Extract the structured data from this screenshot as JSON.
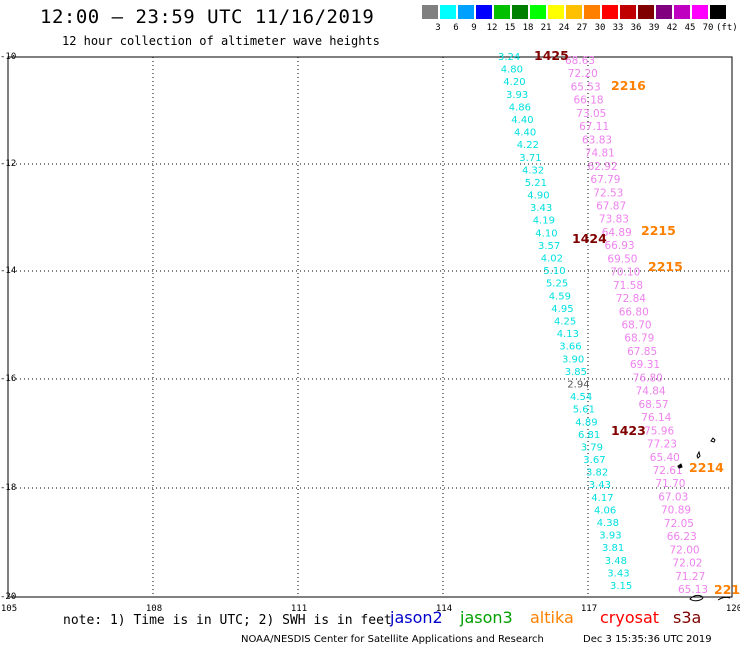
{
  "title": "12:00 — 23:59 UTC 11/16/2019",
  "subtitle": "12 hour collection of altimeter wave heights",
  "color_scale": {
    "labels": [
      "3",
      "6",
      "9",
      "12",
      "15",
      "18",
      "21",
      "24",
      "27",
      "30",
      "33",
      "36",
      "39",
      "42",
      "45",
      "70",
      "(ft)"
    ],
    "colors": [
      "#808080",
      "#00ffff",
      "#00a0ff",
      "#0000ff",
      "#00c000",
      "#008000",
      "#00ff00",
      "#ffff00",
      "#ffc000",
      "#ff8000",
      "#ff0000",
      "#c00000",
      "#800000",
      "#800080",
      "#c000c0",
      "#ff00ff",
      "#000000"
    ]
  },
  "axes": {
    "lat_labels": [
      "-10",
      "-12",
      "-14",
      "-16",
      "-18",
      "-20"
    ],
    "lon_labels": [
      "105",
      "108",
      "111",
      "114",
      "117",
      "120"
    ]
  },
  "tracks": {
    "cyan_color": "#00e0e0",
    "pink_color": "#ee82ee",
    "cyan_values": [
      "3.24",
      "4.80",
      "4.20",
      "3.93",
      "4.86",
      "4.40",
      "4.40",
      "4.22",
      "3.71",
      "4.32",
      "5.21",
      "4.90",
      "3.43",
      "4.19",
      "4.10",
      "3.57",
      "4.02",
      "5.10",
      "5.25",
      "4.59",
      "4.95",
      "4.25",
      "4.13",
      "3.66",
      "3.90",
      "3.85",
      "2.94",
      "4.54",
      "5.61",
      "4.89",
      "6.81",
      "3.79",
      "3.67",
      "3.82",
      "3.43",
      "4.17",
      "4.06",
      "4.38",
      "3.93",
      "3.81",
      "3.48",
      "3.43",
      "3.15"
    ],
    "pink_values": [
      "68.63",
      "72.20",
      "65.53",
      "66.18",
      "73.05",
      "67.11",
      "63.83",
      "74.81",
      "62.92",
      "67.79",
      "72.53",
      "67.87",
      "73.83",
      "64.89",
      "66.93",
      "69.50",
      "70.10",
      "71.58",
      "72.84",
      "66.80",
      "68.70",
      "68.79",
      "67.85",
      "69.31",
      "76.80",
      "74.84",
      "68.57",
      "76.14",
      "75.96",
      "77.23",
      "65.40",
      "72.61",
      "71.70",
      "67.03",
      "70.89",
      "72.05",
      "66.23",
      "72.00",
      "72.02",
      "71.27",
      "65.13"
    ]
  },
  "time_labels": [
    {
      "text": "1425",
      "color": "#800000"
    },
    {
      "text": "2216",
      "color": "#ff8000"
    },
    {
      "text": "1424",
      "color": "#800000"
    },
    {
      "text": "2215",
      "color": "#ff8000"
    },
    {
      "text": "2215",
      "color": "#ff8000"
    },
    {
      "text": "1423",
      "color": "#800000"
    },
    {
      "text": "2214",
      "color": "#ff8000"
    },
    {
      "text": "221",
      "color": "#ff8000"
    }
  ],
  "note": "note: 1) Time is in UTC; 2) SWH is in feet",
  "satellites": [
    {
      "name": "jason2",
      "color": "#0000cc"
    },
    {
      "name": "jason3",
      "color": "#00a000"
    },
    {
      "name": "altika",
      "color": "#ff8000"
    },
    {
      "name": "cryosat",
      "color": "#ff0000"
    },
    {
      "name": "s3a",
      "color": "#800000"
    }
  ],
  "credit": "NOAA/NESDIS Center for Satellite Applications and Research",
  "credit_date": "Dec  3 15:35:36 UTC 2019"
}
